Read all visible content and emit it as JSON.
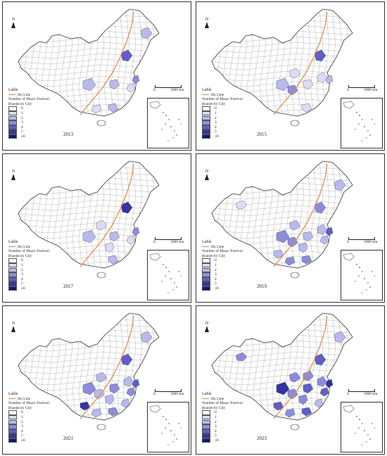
{
  "legend": {
    "title": "Lable",
    "hu_line_label": "Hu Line",
    "caption_line1": "Number of Music Festival",
    "caption_line2": "Brands by City",
    "classes": [
      {
        "label": "0",
        "color": "#ffffff"
      },
      {
        "label": "1",
        "color": "#dcdcf7"
      },
      {
        "label": "2",
        "color": "#b9b9ee"
      },
      {
        "label": "3",
        "color": "#8c8cdc"
      },
      {
        "label": "4",
        "color": "#5f5fc6"
      },
      {
        "label": "5",
        "color": "#3333a6"
      },
      {
        "label": "≥6",
        "color": "#14147a"
      }
    ]
  },
  "north_label": "N",
  "scale": {
    "zero": "0",
    "distance": "1000 km"
  },
  "hu_line_color": "#e0874a",
  "panels": [
    {
      "year": "2013",
      "regions": [
        {
          "id": "harbin",
          "level": 2
        },
        {
          "id": "beijing",
          "level": 4
        },
        {
          "id": "wuhan",
          "level": 2
        },
        {
          "id": "chengdu",
          "level": 2
        },
        {
          "id": "guangzhou",
          "level": 2
        },
        {
          "id": "shanghai",
          "level": 3
        },
        {
          "id": "hangzhou",
          "level": 1
        },
        {
          "id": "nanning",
          "level": 1
        }
      ]
    },
    {
      "year": "2015",
      "regions": [
        {
          "id": "beijing",
          "level": 4
        },
        {
          "id": "shanghai",
          "level": 2
        },
        {
          "id": "chengdu",
          "level": 2
        },
        {
          "id": "chongqing",
          "level": 3
        },
        {
          "id": "wuhan",
          "level": 1
        },
        {
          "id": "xian",
          "level": 1
        },
        {
          "id": "nanjing",
          "level": 1
        },
        {
          "id": "guangzhou",
          "level": 1
        }
      ]
    },
    {
      "year": "2017",
      "regions": [
        {
          "id": "beijing",
          "level": 5
        },
        {
          "id": "chengdu",
          "level": 2
        },
        {
          "id": "xian",
          "level": 1
        },
        {
          "id": "wuhan",
          "level": 2
        },
        {
          "id": "shanghai",
          "level": 3
        },
        {
          "id": "changsha",
          "level": 1
        },
        {
          "id": "guangzhou",
          "level": 2
        },
        {
          "id": "hangzhou",
          "level": 1
        }
      ]
    },
    {
      "year": "2019",
      "regions": [
        {
          "id": "urumqi",
          "level": 1
        },
        {
          "id": "harbin",
          "level": 2
        },
        {
          "id": "beijing",
          "level": 3
        },
        {
          "id": "chengdu",
          "level": 3
        },
        {
          "id": "chongqing",
          "level": 3
        },
        {
          "id": "wuhan",
          "level": 2
        },
        {
          "id": "shanghai",
          "level": 4
        },
        {
          "id": "hangzhou",
          "level": 2
        },
        {
          "id": "guangzhou",
          "level": 3
        },
        {
          "id": "nanning",
          "level": 3
        },
        {
          "id": "kunming",
          "level": 2
        },
        {
          "id": "changsha",
          "level": 2
        },
        {
          "id": "nanjing",
          "level": 2
        },
        {
          "id": "xian",
          "level": 2
        }
      ]
    },
    {
      "year": "2021",
      "regions": [
        {
          "id": "harbin",
          "level": 2
        },
        {
          "id": "beijing",
          "level": 4
        },
        {
          "id": "xian",
          "level": 2
        },
        {
          "id": "chengdu",
          "level": 3
        },
        {
          "id": "chongqing",
          "level": 2
        },
        {
          "id": "wuhan",
          "level": 3
        },
        {
          "id": "changsha",
          "level": 2
        },
        {
          "id": "shanghai",
          "level": 4
        },
        {
          "id": "hangzhou",
          "level": 3
        },
        {
          "id": "guangzhou",
          "level": 3
        },
        {
          "id": "nanning",
          "level": 2
        },
        {
          "id": "kunming",
          "level": 5
        },
        {
          "id": "nanjing",
          "level": 2
        },
        {
          "id": "fuzhou",
          "level": 2
        }
      ]
    },
    {
      "year": "2023",
      "regions": [
        {
          "id": "urumqi",
          "level": 3
        },
        {
          "id": "harbin",
          "level": 2
        },
        {
          "id": "beijing",
          "level": 4
        },
        {
          "id": "xian",
          "level": 3
        },
        {
          "id": "chengdu",
          "level": 5
        },
        {
          "id": "chongqing",
          "level": 3
        },
        {
          "id": "wuhan",
          "level": 4
        },
        {
          "id": "changsha",
          "level": 3
        },
        {
          "id": "shanghai",
          "level": 5
        },
        {
          "id": "hangzhou",
          "level": 4
        },
        {
          "id": "nanjing",
          "level": 3
        },
        {
          "id": "guangzhou",
          "level": 4
        },
        {
          "id": "nanning",
          "level": 3
        },
        {
          "id": "kunming",
          "level": 4
        },
        {
          "id": "fuzhou",
          "level": 2
        },
        {
          "id": "zhengzhou",
          "level": 3
        }
      ]
    }
  ]
}
